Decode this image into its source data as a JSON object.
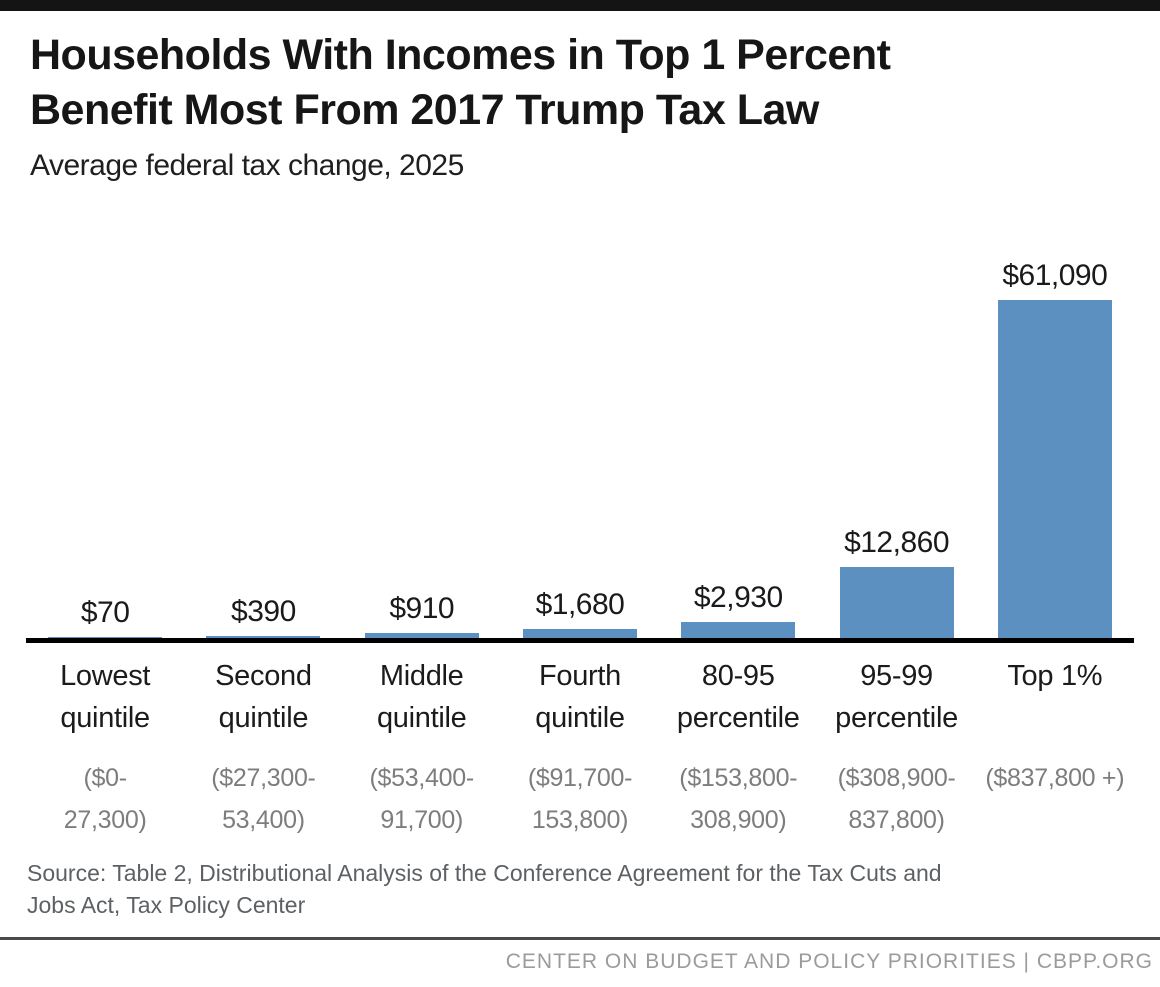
{
  "header": {
    "title_line1": "Households With Incomes in Top 1 Percent",
    "title_line2": "Benefit Most From 2017 Trump Tax Law",
    "subtitle": "Average federal tax change, 2025"
  },
  "chart_data": {
    "type": "bar",
    "title": "Households With Incomes in Top 1 Percent Benefit Most From 2017 Trump Tax Law",
    "subtitle": "Average federal tax change, 2025",
    "categories": [
      "Lowest quintile",
      "Second quintile",
      "Middle quintile",
      "Fourth quintile",
      "80-95 percentile",
      "95-99 percentile",
      "Top 1%"
    ],
    "income_ranges": [
      "($0-27,300)",
      "($27,300-53,400)",
      "($53,400-91,700)",
      "($91,700-153,800)",
      "($153,800-308,900)",
      "($308,900-837,800)",
      "($837,800 +)"
    ],
    "values": [
      70,
      390,
      910,
      1680,
      2930,
      12860,
      61090
    ],
    "value_labels": [
      "$70",
      "$390",
      "$910",
      "$1,680",
      "$2,930",
      "$12,860",
      "$61,090"
    ],
    "ylim": [
      0,
      61090
    ],
    "grid": "off",
    "legend": "none",
    "bar_color": "#5b90c0",
    "columns": [
      {
        "label_lines": [
          "Lowest",
          "quintile"
        ],
        "range_lines": [
          "($0-",
          "27,300)"
        ],
        "value": 70,
        "value_label": "$70"
      },
      {
        "label_lines": [
          "Second",
          "quintile"
        ],
        "range_lines": [
          "($27,300-",
          "53,400)"
        ],
        "value": 390,
        "value_label": "$390"
      },
      {
        "label_lines": [
          "Middle",
          "quintile"
        ],
        "range_lines": [
          "($53,400-",
          "91,700)"
        ],
        "value": 910,
        "value_label": "$910"
      },
      {
        "label_lines": [
          "Fourth",
          "quintile"
        ],
        "range_lines": [
          "($91,700-",
          "153,800)"
        ],
        "value": 1680,
        "value_label": "$1,680"
      },
      {
        "label_lines": [
          "80-95",
          "percentile"
        ],
        "range_lines": [
          "($153,800-",
          "308,900)"
        ],
        "value": 2930,
        "value_label": "$2,930"
      },
      {
        "label_lines": [
          "95-99",
          "percentile"
        ],
        "range_lines": [
          "($308,900-",
          "837,800)"
        ],
        "value": 12860,
        "value_label": "$12,860"
      },
      {
        "label_lines": [
          "Top 1%"
        ],
        "range_lines": [
          "($837,800 +)"
        ],
        "value": 61090,
        "value_label": "$61,090"
      }
    ]
  },
  "colors": {
    "bar": "#5b90c0",
    "axis": "#000000",
    "top_border": "#141414",
    "title_text": "#161616",
    "range_text": "#7d7d7d",
    "source_text": "#5d6164",
    "divider": "#4a4a4a",
    "footer_text": "#9b9b9b"
  },
  "source": {
    "line1": "Source: Table 2, Distributional Analysis of the Conference Agreement for the Tax Cuts and",
    "line2": "Jobs Act, Tax Policy Center"
  },
  "footer": {
    "text": "CENTER ON BUDGET AND POLICY PRIORITIES | CBPP.ORG"
  }
}
